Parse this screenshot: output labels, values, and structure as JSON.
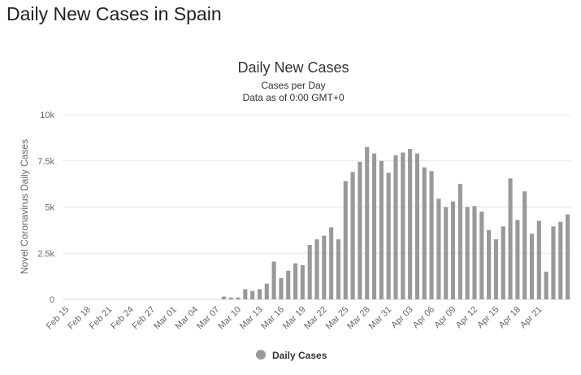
{
  "page": {
    "title": "Daily New Cases in Spain"
  },
  "chart_data": {
    "type": "bar",
    "title": "Daily New Cases",
    "subtitle_lines": [
      "Cases per Day",
      "Data as of 0:00 GMT+0"
    ],
    "ylabel": "Novel Coronavirus Daily Cases",
    "xlabel": "",
    "ylim": [
      0,
      10000
    ],
    "yticks": [
      0,
      2500,
      5000,
      7500,
      10000
    ],
    "ytick_labels": [
      "0",
      "2.5k",
      "5k",
      "7.5k",
      "10k"
    ],
    "xtick_labels": [
      "Feb 15",
      "Feb 18",
      "Feb 21",
      "Feb 24",
      "Feb 27",
      "Mar 01",
      "Mar 04",
      "Mar 07",
      "Mar 10",
      "Mar 13",
      "Mar 16",
      "Mar 19",
      "Mar 22",
      "Mar 25",
      "Mar 28",
      "Mar 31",
      "Apr 03",
      "Apr 06",
      "Apr 09",
      "Apr 12",
      "Apr 15",
      "Apr 18",
      "Apr 21"
    ],
    "xtick_step": 3,
    "grid": true,
    "legend_position": "bottom-center",
    "series": [
      {
        "name": "Daily Cases",
        "color": "#999999",
        "values": [
          0,
          0,
          0,
          0,
          0,
          0,
          0,
          0,
          0,
          0,
          0,
          0,
          0,
          0,
          0,
          0,
          0,
          0,
          0,
          0,
          0,
          0,
          150,
          100,
          100,
          550,
          450,
          550,
          850,
          2050,
          1150,
          1550,
          1950,
          1850,
          2950,
          3250,
          3450,
          3900,
          3250,
          6400,
          6900,
          7450,
          8250,
          7900,
          7500,
          6850,
          7800,
          7950,
          8150,
          7900,
          7150,
          6950,
          5450,
          5000,
          5300,
          6250,
          5000,
          5050,
          4750,
          3750,
          3250,
          3950,
          6550,
          4300,
          5850,
          3550,
          4250,
          1500,
          3950,
          4200,
          4600
        ]
      }
    ]
  }
}
